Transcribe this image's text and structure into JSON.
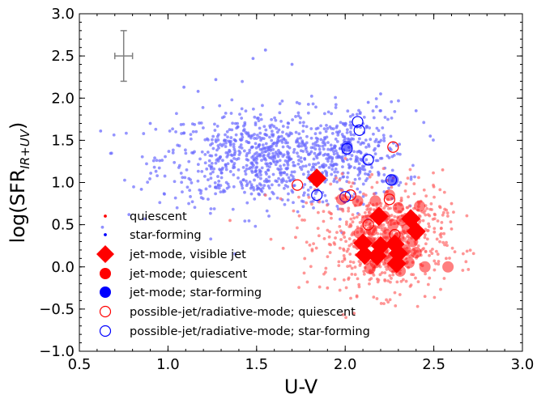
{
  "chart_data": {
    "type": "scatter",
    "xlabel": "U-V",
    "ylabel_main": "log(SFR",
    "ylabel_sub": "IR+UV",
    "ylabel_close": ")",
    "xlim": [
      0.5,
      3.0
    ],
    "ylim": [
      -1.0,
      3.0
    ],
    "xticks": [
      "0.5",
      "1.0",
      "1.5",
      "2.0",
      "2.5",
      "3.0"
    ],
    "yticks": [
      "−1.0",
      "−0.5",
      "0.0",
      "0.5",
      "1.0",
      "1.5",
      "2.0",
      "2.5",
      "3.0"
    ],
    "xtick_values": [
      0.5,
      1.0,
      1.5,
      2.0,
      2.5,
      3.0
    ],
    "ytick_values": [
      -1.0,
      -0.5,
      0.0,
      0.5,
      1.0,
      1.5,
      2.0,
      2.5,
      3.0
    ],
    "grid": false,
    "legend_position": "lower-left",
    "colors": {
      "red": "#ff0000",
      "blue": "#0000ff",
      "light_red": "#ff6a6a",
      "light_blue": "#6a6aff",
      "errorbar": "#808080"
    },
    "error_bar": {
      "x": 0.75,
      "y": 2.5,
      "xerr": 0.05,
      "yerr": 0.3
    },
    "legend": [
      {
        "key": "quiescent",
        "label": "quiescent"
      },
      {
        "key": "star_forming",
        "label": "star-forming"
      },
      {
        "key": "jet_visible",
        "label": "jet-mode, visible jet"
      },
      {
        "key": "jet_quiescent",
        "label": "jet-mode; quiescent"
      },
      {
        "key": "jet_starforming",
        "label": "jet-mode; star-forming"
      },
      {
        "key": "possible_quiescent",
        "label": "possible-jet/radiative-mode; quiescent"
      },
      {
        "key": "possible_starforming",
        "label": "possible-jet/radiative-mode; star-forming"
      }
    ],
    "series": {
      "jet_visible": [
        [
          1.84,
          1.05
        ],
        [
          2.19,
          0.6
        ],
        [
          2.37,
          0.57
        ],
        [
          2.4,
          0.42
        ],
        [
          2.1,
          0.28
        ],
        [
          2.2,
          0.25
        ],
        [
          2.28,
          0.27
        ],
        [
          2.11,
          0.14
        ],
        [
          2.18,
          0.13
        ],
        [
          2.3,
          0.16
        ],
        [
          2.29,
          0.04
        ]
      ],
      "jet_quiescent": [
        [
          1.98,
          0.8
        ],
        [
          2.07,
          0.78
        ],
        [
          2.17,
          0.78
        ],
        [
          2.25,
          0.85
        ],
        [
          2.3,
          0.7
        ],
        [
          2.42,
          0.72
        ],
        [
          2.12,
          0.55
        ],
        [
          2.27,
          0.5
        ],
        [
          2.32,
          0.55
        ],
        [
          2.35,
          0.45
        ],
        [
          2.08,
          0.4
        ],
        [
          2.15,
          0.43
        ],
        [
          2.24,
          0.38
        ],
        [
          2.3,
          0.35
        ],
        [
          2.38,
          0.3
        ],
        [
          2.14,
          0.3
        ],
        [
          2.21,
          0.18
        ],
        [
          2.34,
          0.2
        ],
        [
          2.4,
          0.17
        ],
        [
          2.17,
          0.05
        ],
        [
          2.25,
          0.08
        ],
        [
          2.36,
          0.05
        ],
        [
          2.14,
          -0.02
        ],
        [
          2.27,
          0.0
        ],
        [
          2.31,
          -0.05
        ],
        [
          2.45,
          0.0
        ],
        [
          2.58,
          0.0
        ],
        [
          2.22,
          0.6
        ]
      ],
      "jet_starforming": [
        [
          2.01,
          1.43
        ],
        [
          2.27,
          1.03
        ]
      ],
      "possible_quiescent": [
        [
          1.73,
          0.97
        ],
        [
          2.27,
          1.42
        ],
        [
          2.25,
          0.8
        ],
        [
          2.03,
          0.85
        ],
        [
          2.13,
          0.5
        ],
        [
          2.28,
          0.38
        ]
      ],
      "possible_starforming": [
        [
          2.07,
          1.72
        ],
        [
          2.08,
          1.62
        ],
        [
          2.13,
          1.27
        ],
        [
          1.84,
          0.85
        ],
        [
          2.0,
          0.83
        ],
        [
          2.01,
          1.4
        ],
        [
          2.26,
          1.03
        ]
      ],
      "quiescent_clusters": [
        {
          "cx": 2.22,
          "cy": 0.28,
          "sx": 0.17,
          "sy": 0.3,
          "n": 560
        },
        {
          "cx": 2.35,
          "cy": 0.7,
          "sx": 0.15,
          "sy": 0.22,
          "n": 60
        },
        {
          "cx": 1.95,
          "cy": 0.65,
          "sx": 0.12,
          "sy": 0.3,
          "n": 40
        }
      ],
      "quiescent_extra": [
        [
          2.55,
          1.15
        ],
        [
          2.5,
          0.95
        ],
        [
          2.6,
          0.45
        ],
        [
          2.57,
          0.1
        ],
        [
          1.9,
          -0.25
        ],
        [
          2.05,
          -0.55
        ],
        [
          1.55,
          0.85
        ],
        [
          1.35,
          0.55
        ],
        [
          1.65,
          0.22
        ],
        [
          1.72,
          0.35
        ],
        [
          2.45,
          -0.35
        ],
        [
          2.6,
          0.75
        ]
      ],
      "starforming_clusters": [
        {
          "cx": 1.55,
          "cy": 1.28,
          "sx": 0.3,
          "sy": 0.28,
          "n": 820
        },
        {
          "cx": 2.05,
          "cy": 1.35,
          "sx": 0.15,
          "sy": 0.3,
          "n": 220
        }
      ],
      "starforming_extra": [
        [
          0.62,
          1.61
        ],
        [
          0.63,
          0.47
        ],
        [
          1.09,
          2.13
        ],
        [
          1.17,
          2.08
        ],
        [
          1.48,
          2.47
        ],
        [
          1.55,
          2.57
        ],
        [
          1.7,
          2.4
        ],
        [
          2.13,
          1.95
        ],
        [
          1.27,
          2.22
        ],
        [
          0.85,
          0.92
        ],
        [
          0.78,
          0.62
        ],
        [
          2.4,
          1.85
        ],
        [
          2.48,
          1.55
        ],
        [
          0.9,
          1.7
        ],
        [
          2.2,
          2.05
        ]
      ]
    }
  }
}
